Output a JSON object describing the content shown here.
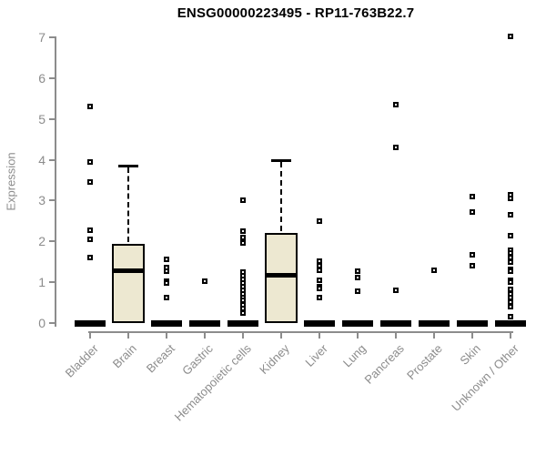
{
  "chart_data": {
    "type": "boxplot",
    "title": "ENSG00000223495 - RP11-763B22.7",
    "ylabel": "Expression",
    "xlabel": "",
    "ylim": [
      0,
      7
    ],
    "yticks": [
      "0",
      "1",
      "2",
      "3",
      "4",
      "5",
      "6",
      "7"
    ],
    "grid": false,
    "legend": "none",
    "categories": [
      "Bladder",
      "Brain",
      "Breast",
      "Gastric",
      "Hematopoietic cells",
      "Kidney",
      "Liver",
      "Lung",
      "Pancreas",
      "Prostate",
      "Skin",
      "Unknown / Other"
    ],
    "colors": {
      "box_fill": "#ede8d1",
      "box_border": "#000000",
      "axis": "#8c8c8c",
      "label_text": "#8c8c8c",
      "title_text": "#000000",
      "background": "#ffffff"
    },
    "groups": [
      {
        "name": "Bladder",
        "box": {
          "whisker_low": 0,
          "q1": 0,
          "median": 0,
          "q3": 0,
          "whisker_high": 0
        },
        "points": [
          5.3,
          3.95,
          3.45,
          2.27,
          2.05,
          1.6
        ]
      },
      {
        "name": "Brain",
        "box": {
          "whisker_low": 0,
          "q1": 0,
          "median": 1.3,
          "q3": 1.95,
          "whisker_high": 3.85
        },
        "points": []
      },
      {
        "name": "Breast",
        "box": {
          "whisker_low": 0,
          "q1": 0,
          "median": 0,
          "q3": 0,
          "whisker_high": 0
        },
        "points": [
          1.55,
          1.35,
          1.28,
          1.02,
          0.98,
          0.62
        ]
      },
      {
        "name": "Gastric",
        "box": {
          "whisker_low": 0,
          "q1": 0,
          "median": 0,
          "q3": 0,
          "whisker_high": 0
        },
        "points": [
          1.02
        ]
      },
      {
        "name": "Hematopoietic cells",
        "box": {
          "whisker_low": 0,
          "q1": 0,
          "median": 0,
          "q3": 0,
          "whisker_high": 0
        },
        "points": [
          3.0,
          2.25,
          2.1,
          1.97,
          1.25,
          1.15,
          1.07,
          0.98,
          0.9,
          0.8,
          0.72,
          0.63,
          0.55,
          0.45,
          0.35,
          0.25
        ]
      },
      {
        "name": "Kidney",
        "box": {
          "whisker_low": 0,
          "q1": 0,
          "median": 1.18,
          "q3": 2.2,
          "whisker_high": 4.0
        },
        "points": []
      },
      {
        "name": "Liver",
        "box": {
          "whisker_low": 0,
          "q1": 0,
          "median": 0,
          "q3": 0,
          "whisker_high": 0
        },
        "points": [
          2.5,
          1.52,
          1.4,
          1.3,
          1.05,
          0.9,
          0.85,
          0.63
        ]
      },
      {
        "name": "Lung",
        "box": {
          "whisker_low": 0,
          "q1": 0,
          "median": 0,
          "q3": 0,
          "whisker_high": 0
        },
        "points": [
          1.27,
          1.12,
          0.78
        ]
      },
      {
        "name": "Pancreas",
        "box": {
          "whisker_low": 0,
          "q1": 0,
          "median": 0,
          "q3": 0,
          "whisker_high": 0
        },
        "points": [
          5.35,
          4.3,
          0.8
        ]
      },
      {
        "name": "Prostate",
        "box": {
          "whisker_low": 0,
          "q1": 0,
          "median": 0,
          "q3": 0,
          "whisker_high": 0
        },
        "points": [
          1.3
        ]
      },
      {
        "name": "Skin",
        "box": {
          "whisker_low": 0,
          "q1": 0,
          "median": 0,
          "q3": 0,
          "whisker_high": 0
        },
        "points": [
          3.1,
          2.72,
          1.67,
          1.4
        ]
      },
      {
        "name": "Unknown / Other",
        "box": {
          "whisker_low": 0,
          "q1": 0,
          "median": 0,
          "q3": 0,
          "whisker_high": 0
        },
        "points": [
          7.03,
          3.15,
          3.05,
          2.65,
          2.15,
          1.78,
          1.72,
          1.6,
          1.5,
          1.32,
          1.28,
          1.05,
          1.0,
          0.82,
          0.72,
          0.62,
          0.52,
          0.4,
          0.15
        ]
      }
    ]
  }
}
